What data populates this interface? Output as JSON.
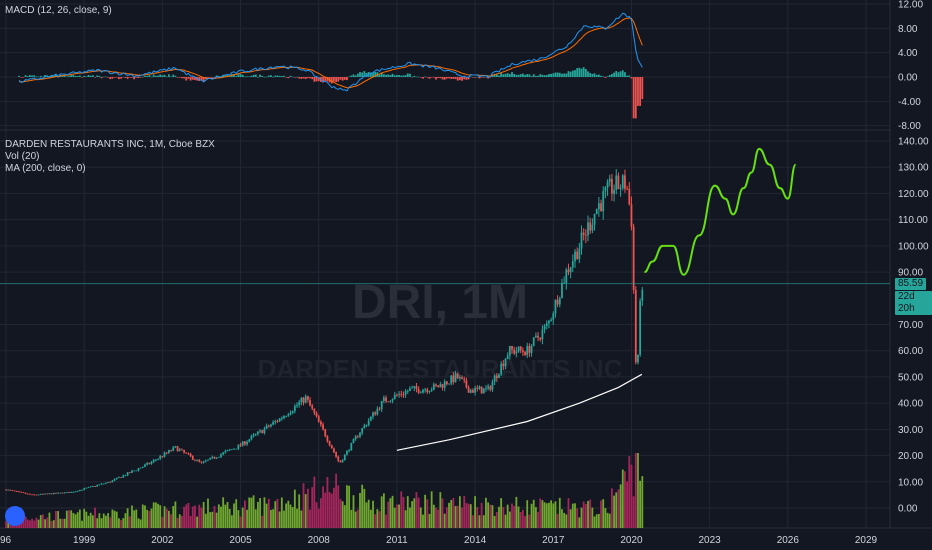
{
  "macd_panel": {
    "legend": "MACD (12, 26, close, 9)",
    "y_ticks": [
      {
        "v": 12,
        "label": "12.00"
      },
      {
        "v": 8,
        "label": "8.00"
      },
      {
        "v": 4,
        "label": "4.00"
      },
      {
        "v": 0,
        "label": "0.00"
      },
      {
        "v": -4,
        "label": "-4.00"
      },
      {
        "v": -8,
        "label": "-8.00"
      }
    ]
  },
  "price_panel": {
    "legend_title": "DARDEN RESTAURANTS INC, 1M, Cboe BZX",
    "legend_vol": "Vol (20)",
    "legend_ma": "MA (200, close, 0)",
    "watermark_symbol": "DRI, 1M",
    "watermark_name": "DARDEN RESTAURANTS INC",
    "y_ticks": [
      {
        "v": 140,
        "label": "140.00"
      },
      {
        "v": 130,
        "label": "130.00"
      },
      {
        "v": 120,
        "label": "120.00"
      },
      {
        "v": 110,
        "label": "110.00"
      },
      {
        "v": 100,
        "label": "100.00"
      },
      {
        "v": 90,
        "label": "90.00"
      },
      {
        "v": 70,
        "label": "70.00"
      },
      {
        "v": 60,
        "label": "60.00"
      },
      {
        "v": 50,
        "label": "50.00"
      },
      {
        "v": 40,
        "label": "40.00"
      },
      {
        "v": 30,
        "label": "30.00"
      },
      {
        "v": 20,
        "label": "20.00"
      },
      {
        "v": 10,
        "label": "10.00"
      },
      {
        "v": 0,
        "label": "0.00"
      }
    ],
    "last_price": {
      "value": 85.59,
      "label": "85.59"
    },
    "countdown": {
      "label": "22d 20h"
    }
  },
  "x_axis": {
    "ticks": [
      {
        "year": 1996,
        "label": "96"
      },
      {
        "year": 1999,
        "label": "1999"
      },
      {
        "year": 2002,
        "label": "2002"
      },
      {
        "year": 2005,
        "label": "2005"
      },
      {
        "year": 2008,
        "label": "2008"
      },
      {
        "year": 2011,
        "label": "2011"
      },
      {
        "year": 2014,
        "label": "2014"
      },
      {
        "year": 2017,
        "label": "2017"
      },
      {
        "year": 2020,
        "label": "2020"
      },
      {
        "year": 2023,
        "label": "2023"
      },
      {
        "year": 2026,
        "label": "2026"
      },
      {
        "year": 2029,
        "label": "2029"
      }
    ]
  },
  "colors": {
    "background": "#131722",
    "grid": "#232733",
    "axis_text": "#d1d4dc",
    "up": "#26a69a",
    "down": "#ef5350",
    "vol_up": "#70a830",
    "vol_down": "#a8255c",
    "macd": "#2196f3",
    "signal": "#ff6d00",
    "hist_up": "#26a69a",
    "hist_down": "#ef5350",
    "ma": "#ffffff",
    "projection": "#66e00f",
    "last_price_tag": "#26a69a",
    "countdown_tag": "#26a69a"
  },
  "chart_data": [
    {
      "type": "candlestick",
      "name": "DRI monthly price",
      "x_unit": "year",
      "ylim": [
        -6,
        145
      ],
      "anchor_closes": [
        [
          1996.0,
          7
        ],
        [
          1997.0,
          5
        ],
        [
          1998.5,
          6
        ],
        [
          2000.0,
          10
        ],
        [
          2001.5,
          17
        ],
        [
          2002.5,
          23
        ],
        [
          2003.5,
          17
        ],
        [
          2005.0,
          24
        ],
        [
          2006.5,
          34
        ],
        [
          2007.5,
          42
        ],
        [
          2008.3,
          27
        ],
        [
          2008.8,
          17
        ],
        [
          2009.5,
          28
        ],
        [
          2010.5,
          41
        ],
        [
          2011.5,
          45
        ],
        [
          2012.5,
          46
        ],
        [
          2013.3,
          50
        ],
        [
          2013.8,
          45
        ],
        [
          2014.5,
          45
        ],
        [
          2015.3,
          60
        ],
        [
          2016.0,
          60
        ],
        [
          2016.8,
          70
        ],
        [
          2017.5,
          90
        ],
        [
          2018.0,
          100
        ],
        [
          2018.7,
          115
        ],
        [
          2019.2,
          122
        ],
        [
          2019.8,
          124
        ],
        [
          2020.0,
          110
        ],
        [
          2020.2,
          45
        ],
        [
          2020.3,
          72
        ],
        [
          2020.4,
          85.59
        ]
      ]
    },
    {
      "type": "line",
      "name": "MA (200, close, 0)",
      "points": [
        [
          2011.0,
          22
        ],
        [
          2013.0,
          26
        ],
        [
          2016.0,
          33
        ],
        [
          2018.0,
          40
        ],
        [
          2019.5,
          46
        ],
        [
          2020.4,
          51
        ]
      ]
    },
    {
      "type": "line",
      "name": "projection",
      "points": [
        [
          2020.5,
          90
        ],
        [
          2020.8,
          94
        ],
        [
          2021.2,
          100
        ],
        [
          2021.6,
          100
        ],
        [
          2022.0,
          89
        ],
        [
          2022.6,
          104
        ],
        [
          2023.2,
          123
        ],
        [
          2023.6,
          118
        ],
        [
          2023.9,
          112
        ],
        [
          2024.3,
          122
        ],
        [
          2024.6,
          128
        ],
        [
          2024.9,
          137
        ],
        [
          2025.3,
          131
        ],
        [
          2025.7,
          122
        ],
        [
          2026.0,
          118
        ],
        [
          2026.3,
          131
        ]
      ]
    },
    {
      "type": "bar",
      "name": "Vol (20)",
      "relative_volume_anchors": [
        [
          1996.0,
          0.15
        ],
        [
          2000.0,
          0.22
        ],
        [
          2003.0,
          0.3
        ],
        [
          2006.0,
          0.35
        ],
        [
          2008.5,
          0.6
        ],
        [
          2010.0,
          0.4
        ],
        [
          2013.0,
          0.38
        ],
        [
          2016.0,
          0.32
        ],
        [
          2019.0,
          0.3
        ],
        [
          2020.2,
          1.0
        ]
      ]
    },
    {
      "type": "line",
      "name": "MACD (12, 26, close, 9)",
      "ylim": [
        -9,
        13
      ],
      "macd_anchors": [
        [
          1996.5,
          -0.8
        ],
        [
          1998.0,
          0.3
        ],
        [
          1999.5,
          1.1
        ],
        [
          2001.0,
          0.2
        ],
        [
          2002.5,
          1.5
        ],
        [
          2003.5,
          -0.7
        ],
        [
          2005.0,
          0.9
        ],
        [
          2006.5,
          1.8
        ],
        [
          2007.5,
          1.2
        ],
        [
          2008.5,
          -1.5
        ],
        [
          2009.0,
          -2.3
        ],
        [
          2010.0,
          0.8
        ],
        [
          2011.5,
          2.2
        ],
        [
          2012.5,
          1.5
        ],
        [
          2013.5,
          0.2
        ],
        [
          2014.5,
          0.1
        ],
        [
          2015.5,
          2.2
        ],
        [
          2016.5,
          3.0
        ],
        [
          2017.5,
          5.0
        ],
        [
          2018.2,
          8.5
        ],
        [
          2019.0,
          8.0
        ],
        [
          2019.7,
          10.5
        ],
        [
          2020.0,
          9.5
        ],
        [
          2020.2,
          3.5
        ],
        [
          2020.4,
          1.5
        ]
      ],
      "histogram_extreme": [
        2020.2,
        -6.8
      ]
    }
  ]
}
